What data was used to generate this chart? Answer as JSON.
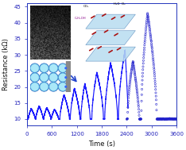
{
  "title": "",
  "xlabel": "Time (s)",
  "ylabel": "Resistance (kΩ)",
  "xlim": [
    0,
    3600
  ],
  "ylim": [
    8,
    46
  ],
  "yticks": [
    10,
    15,
    20,
    25,
    30,
    35,
    40,
    45
  ],
  "xticks": [
    0,
    600,
    1200,
    1800,
    2400,
    3000,
    3600
  ],
  "line_color": "#1a1aff",
  "scatter_color": "#2222cc",
  "background_color": "#ffffff"
}
